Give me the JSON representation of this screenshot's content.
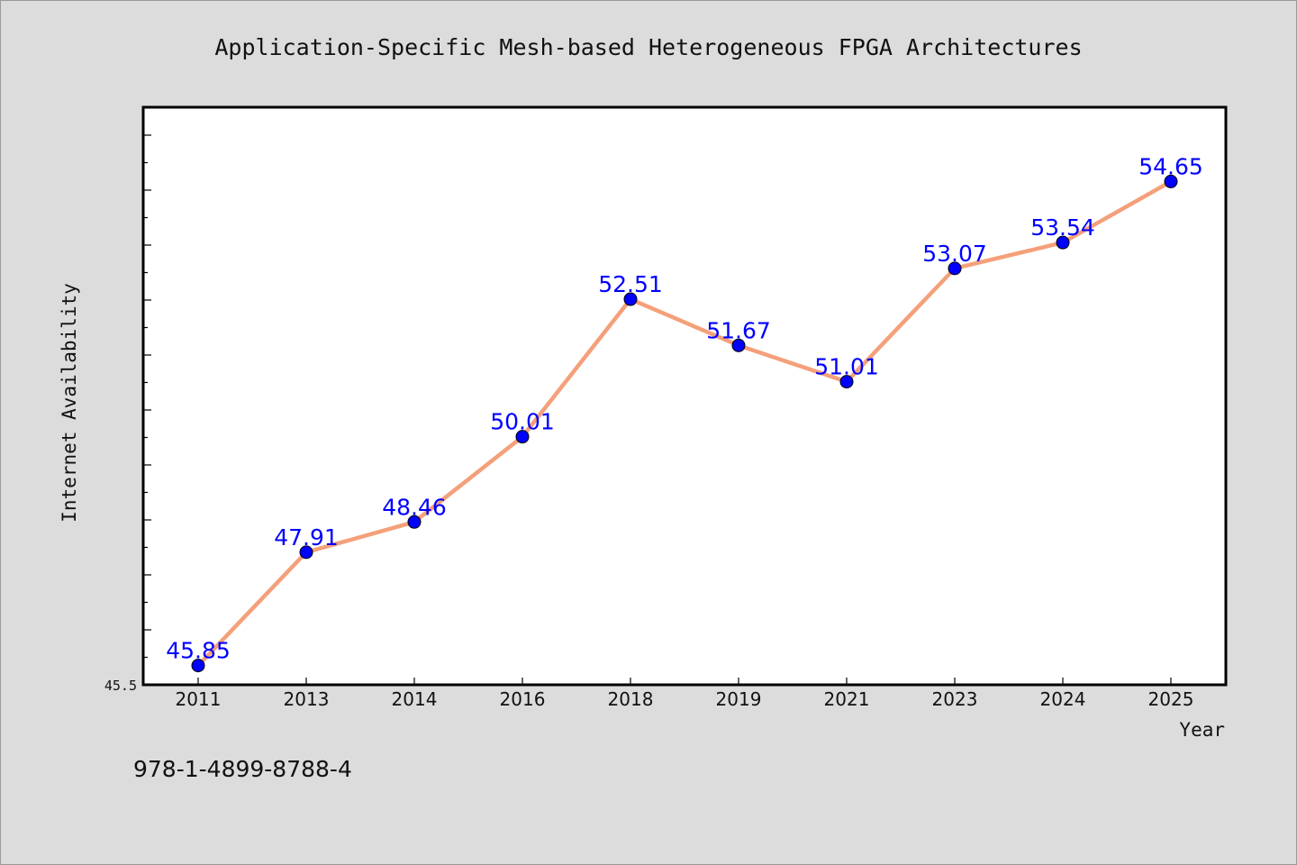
{
  "chart_data": {
    "type": "line",
    "title": "Application-Specific Mesh-based Heterogeneous FPGA Architectures",
    "xlabel": "Year",
    "ylabel": "Internet Availability",
    "categories": [
      "2011",
      "2013",
      "2014",
      "2016",
      "2018",
      "2019",
      "2021",
      "2023",
      "2024",
      "2025"
    ],
    "series": [
      {
        "values": [
          45.85,
          47.91,
          48.46,
          50.01,
          52.51,
          51.67,
          51.01,
          53.07,
          53.54,
          54.65
        ],
        "labels": [
          "45.85",
          "47.91",
          "48.46",
          "50.01",
          "52.51",
          "51.67",
          "51.01",
          "53.07",
          "53.54",
          "54.65"
        ],
        "line_color": "#f4a07a",
        "marker_color": "#0000ff"
      }
    ],
    "ylim": [
      45.5,
      56.0
    ],
    "y_min_label": "45.5",
    "grid": false,
    "legend": "none"
  },
  "footer": {
    "isbn": "978-1-4899-8788-4"
  }
}
